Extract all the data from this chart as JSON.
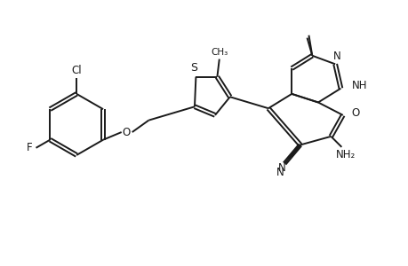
{
  "bg_color": "#ffffff",
  "line_color": "#1a1a1a",
  "line_width": 1.4,
  "figsize": [
    4.6,
    3.0
  ],
  "dpi": 100,
  "xlim": [
    0,
    9.5
  ],
  "ylim": [
    0,
    6.2
  ]
}
